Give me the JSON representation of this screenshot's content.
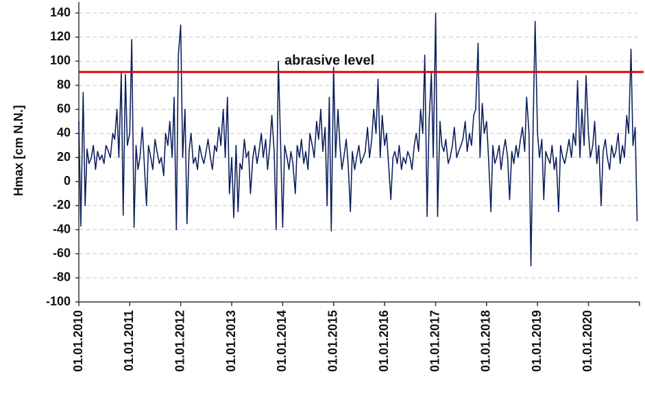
{
  "chart_data": {
    "type": "line",
    "y_label": "Hmax [cm N.N.]",
    "xlim": [
      "2010-01-01",
      "2021-01-01"
    ],
    "xticks": [
      {
        "value": "2010-01-01",
        "label": "01.01.2010"
      },
      {
        "value": "2011-01-01",
        "label": "01.01.2011"
      },
      {
        "value": "2012-01-01",
        "label": "01.01.2012"
      },
      {
        "value": "2013-01-01",
        "label": "01.01.2013"
      },
      {
        "value": "2014-01-01",
        "label": "01.01.2014"
      },
      {
        "value": "2015-01-01",
        "label": "01.01.2015"
      },
      {
        "value": "2016-01-01",
        "label": "01.01.2016"
      },
      {
        "value": "2017-01-01",
        "label": "01.01.2017"
      },
      {
        "value": "2018-01-01",
        "label": "01.01.2018"
      },
      {
        "value": "2019-01-01",
        "label": "01.01.2019"
      },
      {
        "value": "2020-01-01",
        "label": "01.01.2020"
      }
    ],
    "ylim": [
      -100,
      140
    ],
    "yticks": [
      -100,
      -80,
      -60,
      -40,
      -20,
      0,
      20,
      40,
      60,
      80,
      100,
      120,
      140
    ],
    "grid": true,
    "reference_lines": [
      {
        "value": 91,
        "label": "abrasive level",
        "color": "#e00000"
      }
    ],
    "x": [
      "2010-01-01",
      "2010-01-15",
      "2010-02-01",
      "2010-02-15",
      "2010-03-01",
      "2010-03-15",
      "2010-04-01",
      "2010-04-15",
      "2010-05-01",
      "2010-05-15",
      "2010-06-01",
      "2010-06-15",
      "2010-07-01",
      "2010-07-15",
      "2010-08-01",
      "2010-08-15",
      "2010-09-01",
      "2010-09-15",
      "2010-10-01",
      "2010-10-15",
      "2010-11-01",
      "2010-11-15",
      "2010-12-01",
      "2010-12-15",
      "2011-01-01",
      "2011-01-15",
      "2011-02-01",
      "2011-02-15",
      "2011-03-01",
      "2011-03-15",
      "2011-04-01",
      "2011-04-15",
      "2011-05-01",
      "2011-05-15",
      "2011-06-01",
      "2011-06-15",
      "2011-07-01",
      "2011-07-15",
      "2011-08-01",
      "2011-08-15",
      "2011-09-01",
      "2011-09-15",
      "2011-10-01",
      "2011-10-15",
      "2011-11-01",
      "2011-11-15",
      "2011-12-01",
      "2011-12-15",
      "2012-01-01",
      "2012-01-15",
      "2012-02-01",
      "2012-02-15",
      "2012-03-01",
      "2012-03-15",
      "2012-04-01",
      "2012-04-15",
      "2012-05-01",
      "2012-05-15",
      "2012-06-01",
      "2012-06-15",
      "2012-07-01",
      "2012-07-15",
      "2012-08-01",
      "2012-08-15",
      "2012-09-01",
      "2012-09-15",
      "2012-10-01",
      "2012-10-15",
      "2012-11-01",
      "2012-11-15",
      "2012-12-01",
      "2012-12-15",
      "2013-01-01",
      "2013-01-15",
      "2013-02-01",
      "2013-02-15",
      "2013-03-01",
      "2013-03-15",
      "2013-04-01",
      "2013-04-15",
      "2013-05-01",
      "2013-05-15",
      "2013-06-01",
      "2013-06-15",
      "2013-07-01",
      "2013-07-15",
      "2013-08-01",
      "2013-08-15",
      "2013-09-01",
      "2013-09-15",
      "2013-10-01",
      "2013-10-15",
      "2013-11-01",
      "2013-11-15",
      "2013-12-01",
      "2013-12-15",
      "2014-01-01",
      "2014-01-15",
      "2014-02-01",
      "2014-02-15",
      "2014-03-01",
      "2014-03-15",
      "2014-04-01",
      "2014-04-15",
      "2014-05-01",
      "2014-05-15",
      "2014-06-01",
      "2014-06-15",
      "2014-07-01",
      "2014-07-15",
      "2014-08-01",
      "2014-08-15",
      "2014-09-01",
      "2014-09-15",
      "2014-10-01",
      "2014-10-15",
      "2014-11-01",
      "2014-11-15",
      "2014-12-01",
      "2014-12-15",
      "2015-01-01",
      "2015-01-15",
      "2015-02-01",
      "2015-02-15",
      "2015-03-01",
      "2015-03-15",
      "2015-04-01",
      "2015-04-15",
      "2015-05-01",
      "2015-05-15",
      "2015-06-01",
      "2015-06-15",
      "2015-07-01",
      "2015-07-15",
      "2015-08-01",
      "2015-08-15",
      "2015-09-01",
      "2015-09-15",
      "2015-10-01",
      "2015-10-15",
      "2015-11-01",
      "2015-11-15",
      "2015-12-01",
      "2015-12-15",
      "2016-01-01",
      "2016-01-15",
      "2016-02-01",
      "2016-02-15",
      "2016-03-01",
      "2016-03-15",
      "2016-04-01",
      "2016-04-15",
      "2016-05-01",
      "2016-05-15",
      "2016-06-01",
      "2016-06-15",
      "2016-07-01",
      "2016-07-15",
      "2016-08-01",
      "2016-08-15",
      "2016-09-01",
      "2016-09-15",
      "2016-10-01",
      "2016-10-15",
      "2016-11-01",
      "2016-11-15",
      "2016-12-01",
      "2016-12-15",
      "2017-01-01",
      "2017-01-15",
      "2017-02-01",
      "2017-02-15",
      "2017-03-01",
      "2017-03-15",
      "2017-04-01",
      "2017-04-15",
      "2017-05-01",
      "2017-05-15",
      "2017-06-01",
      "2017-06-15",
      "2017-07-01",
      "2017-07-15",
      "2017-08-01",
      "2017-08-15",
      "2017-09-01",
      "2017-09-15",
      "2017-10-01",
      "2017-10-15",
      "2017-11-01",
      "2017-11-15",
      "2017-12-01",
      "2017-12-15",
      "2018-01-01",
      "2018-01-15",
      "2018-02-01",
      "2018-02-15",
      "2018-03-01",
      "2018-03-15",
      "2018-04-01",
      "2018-04-15",
      "2018-05-01",
      "2018-05-15",
      "2018-06-01",
      "2018-06-15",
      "2018-07-01",
      "2018-07-15",
      "2018-08-01",
      "2018-08-15",
      "2018-09-01",
      "2018-09-15",
      "2018-10-01",
      "2018-10-15",
      "2018-11-01",
      "2018-11-15",
      "2018-12-01",
      "2018-12-15",
      "2019-01-01",
      "2019-01-15",
      "2019-02-01",
      "2019-02-15",
      "2019-03-01",
      "2019-03-15",
      "2019-04-01",
      "2019-04-15",
      "2019-05-01",
      "2019-05-15",
      "2019-06-01",
      "2019-06-15",
      "2019-07-01",
      "2019-07-15",
      "2019-08-01",
      "2019-08-15",
      "2019-09-01",
      "2019-09-15",
      "2019-10-01",
      "2019-10-15",
      "2019-11-01",
      "2019-11-15",
      "2019-12-01",
      "2019-12-15",
      "2020-01-01",
      "2020-01-15",
      "2020-02-01",
      "2020-02-15",
      "2020-03-01",
      "2020-03-15",
      "2020-04-01",
      "2020-04-15",
      "2020-05-01",
      "2020-05-15",
      "2020-06-01",
      "2020-06-15",
      "2020-07-01",
      "2020-07-15",
      "2020-08-01",
      "2020-08-15",
      "2020-09-01",
      "2020-09-15",
      "2020-10-01",
      "2020-10-15",
      "2020-11-01",
      "2020-11-15",
      "2020-12-01",
      "2020-12-15"
    ],
    "series": [
      {
        "color": "#0d1f5c",
        "values": [
          50,
          -37,
          74,
          -20,
          27,
          15,
          20,
          30,
          10,
          25,
          18,
          22,
          15,
          30,
          25,
          20,
          40,
          35,
          60,
          20,
          90,
          -28,
          89,
          30,
          40,
          118,
          -38,
          30,
          10,
          20,
          45,
          15,
          -20,
          30,
          20,
          10,
          35,
          25,
          15,
          20,
          5,
          40,
          30,
          50,
          20,
          70,
          -40,
          105,
          130,
          20,
          60,
          -35,
          25,
          40,
          15,
          20,
          10,
          30,
          20,
          15,
          25,
          35,
          20,
          10,
          30,
          25,
          45,
          30,
          60,
          20,
          70,
          -10,
          20,
          -30,
          30,
          -25,
          15,
          10,
          35,
          20,
          25,
          -10,
          20,
          30,
          15,
          25,
          40,
          20,
          35,
          10,
          30,
          55,
          25,
          -40,
          100,
          40,
          -38,
          30,
          20,
          10,
          25,
          15,
          -10,
          30,
          20,
          35,
          15,
          25,
          10,
          40,
          30,
          20,
          50,
          35,
          60,
          25,
          45,
          -20,
          70,
          -41,
          95,
          20,
          60,
          30,
          10,
          20,
          35,
          15,
          -25,
          25,
          10,
          20,
          30,
          15,
          20,
          25,
          45,
          20,
          35,
          60,
          40,
          85,
          20,
          55,
          30,
          40,
          10,
          -15,
          20,
          25,
          15,
          30,
          10,
          20,
          15,
          25,
          20,
          10,
          30,
          40,
          25,
          60,
          40,
          105,
          -29,
          50,
          90,
          20,
          140,
          -29,
          50,
          30,
          25,
          35,
          15,
          20,
          30,
          45,
          20,
          25,
          30,
          35,
          50,
          25,
          40,
          30,
          55,
          60,
          115,
          20,
          65,
          40,
          50,
          20,
          -25,
          30,
          15,
          20,
          30,
          10,
          25,
          35,
          20,
          -15,
          25,
          15,
          30,
          20,
          35,
          45,
          25,
          70,
          40,
          -70,
          50,
          133,
          40,
          20,
          35,
          -15,
          25,
          20,
          15,
          30,
          10,
          20,
          -25,
          30,
          20,
          15,
          25,
          35,
          20,
          40,
          30,
          84,
          20,
          60,
          30,
          88,
          40,
          20,
          30,
          50,
          15,
          30,
          -20,
          25,
          35,
          20,
          10,
          30,
          20,
          25,
          40,
          15,
          30,
          20,
          55,
          40,
          110,
          30,
          45,
          -33
        ]
      }
    ]
  }
}
